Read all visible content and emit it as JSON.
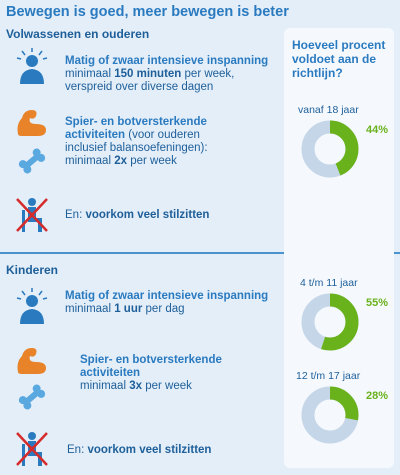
{
  "title": "Bewegen is goed, meer bewegen is beter",
  "adults": {
    "heading": "Volwassenen en ouderen",
    "row1": {
      "head": "Matig of zwaar intensieve inspanning",
      "line2_pre": "minimaal ",
      "line2_bold": "150 minuten",
      "line2_post": " per week,",
      "line3": "verspreid over diverse dagen"
    },
    "row2": {
      "head": "Spier- en botversterkende",
      "head2": "activiteiten",
      "head2_post": " (voor ouderen",
      "line3": "inclusief balansoefeningen):",
      "line4_pre": "minimaal ",
      "line4_bold": "2x",
      "line4_post": " per week"
    },
    "row3": {
      "pre": "En: ",
      "bold": "voorkom veel stilzitten"
    }
  },
  "children": {
    "heading": "Kinderen",
    "row1": {
      "head": "Matig of zwaar intensieve inspanning",
      "line2_pre": "minimaal ",
      "line2_bold": "1 uur",
      "line2_post": " per dag"
    },
    "row2": {
      "head": "Spier- en botversterkende",
      "head2": "activiteiten",
      "line3_pre": "minimaal ",
      "line3_bold": "3x",
      "line3_post": " per week"
    },
    "row3": {
      "pre": "En: ",
      "bold": "voorkom veel stilzitten"
    }
  },
  "panel": {
    "question": "Hoeveel procent voldoet aan de richtlijn?"
  },
  "chart_data": [
    {
      "type": "pie",
      "label": "vanaf 18 jaar",
      "value": 44,
      "display": "44%"
    },
    {
      "type": "pie",
      "label": "4 t/m 11 jaar",
      "value": 55,
      "display": "55%"
    },
    {
      "type": "pie",
      "label": "12 t/m 17 jaar",
      "value": 28,
      "display": "28%"
    }
  ],
  "colors": {
    "green": "#6ab21c",
    "light_blue": "#c5d6e8",
    "blue": "#2a7ac0",
    "orange": "#e8832a",
    "red": "#d62b2b"
  },
  "icons": [
    "person-exercise-icon",
    "flexed-arm-icon",
    "bone-icon",
    "no-sitting-icon"
  ]
}
